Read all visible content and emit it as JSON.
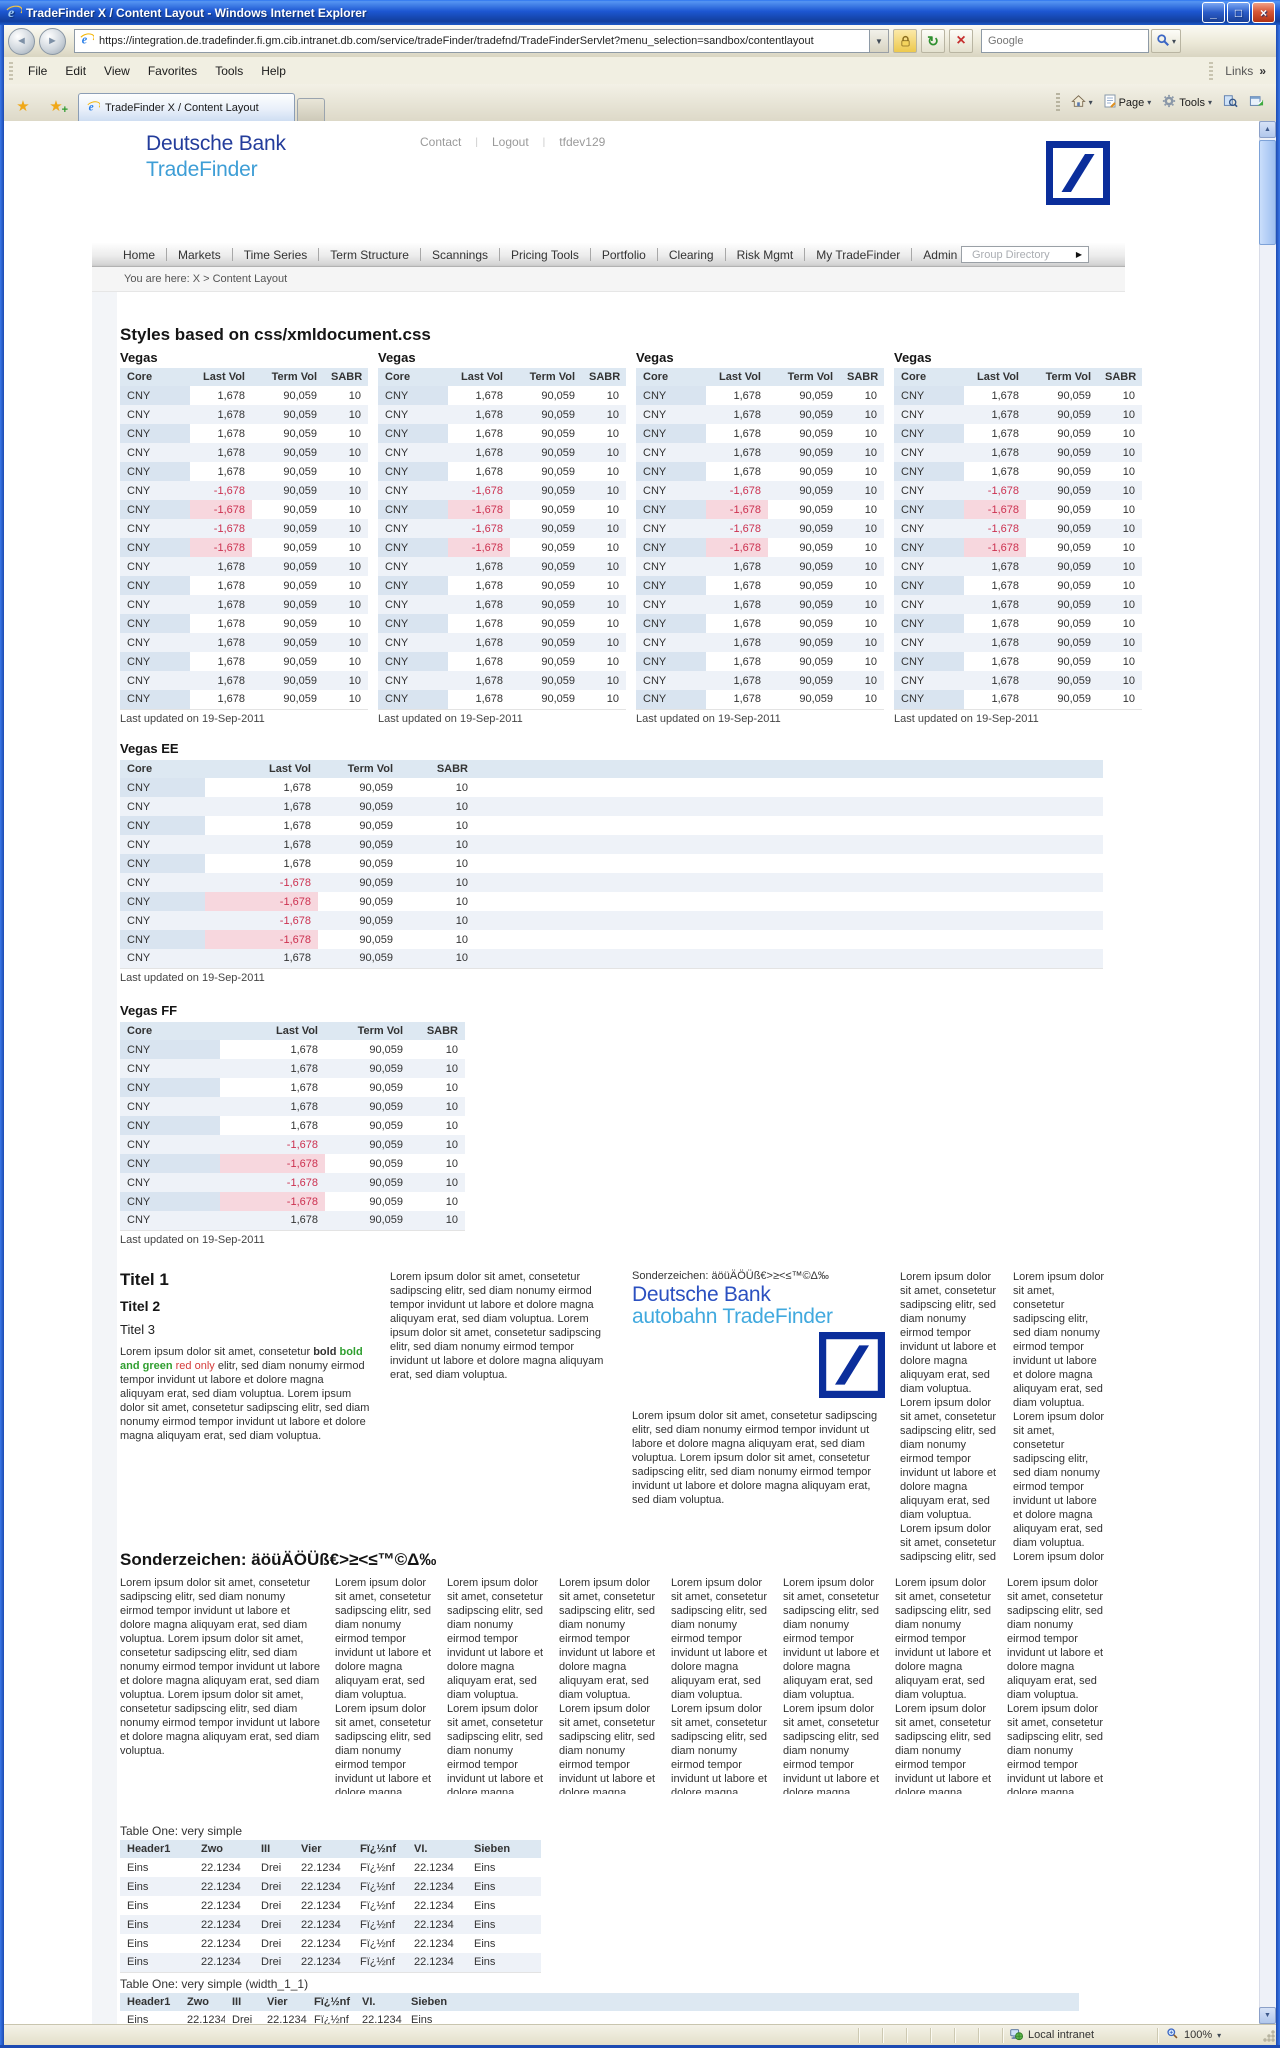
{
  "browser": {
    "window_title": "TradeFinder X / Content Layout - Windows Internet Explorer",
    "url": "https://integration.de.tradefinder.fi.gm.cib.intranet.db.com/service/tradeFinder/tradefnd/TradeFinderServlet?menu_selection=sandbox/contentlayout",
    "search_placeholder": "Google",
    "menu": [
      "File",
      "Edit",
      "View",
      "Favorites",
      "Tools",
      "Help"
    ],
    "links_label": "Links",
    "tab_title": "TradeFinder X / Content Layout",
    "page_button": "Page",
    "tools_button": "Tools",
    "status_zone": "Local intranet",
    "zoom_level": "100%"
  },
  "header": {
    "brand_line1": "Deutsche Bank",
    "brand_line2": "TradeFinder",
    "links": [
      "Contact",
      "Logout",
      "tfdev129"
    ]
  },
  "nav": {
    "items": [
      {
        "label": "Home"
      },
      {
        "label": "Markets"
      },
      {
        "label": "Time Series"
      },
      {
        "label": "Term Structure"
      },
      {
        "label": "Scannings"
      },
      {
        "label": "Pricing Tools"
      },
      {
        "label": "Portfolio"
      },
      {
        "label": "Clearing"
      },
      {
        "label": "Risk Mgmt"
      },
      {
        "label": "My TradeFinder"
      },
      {
        "label": "Admin"
      },
      {
        "label": "X",
        "accent": true
      }
    ],
    "group_directory": "Group Directory"
  },
  "breadcrumb": "You are here: X > Content Layout",
  "main": {
    "heading": "Styles based on css/xmldocument.css",
    "vegas_small": {
      "title": "Vegas",
      "columns": [
        "Core",
        "Last Vol",
        "Term Vol",
        "SABR"
      ],
      "rows": [
        [
          "CNY",
          "1,678",
          "90,059",
          "10"
        ],
        [
          "CNY",
          "1,678",
          "90,059",
          "10"
        ],
        [
          "CNY",
          "1,678",
          "90,059",
          "10"
        ],
        [
          "CNY",
          "1,678",
          "90,059",
          "10"
        ],
        [
          "CNY",
          "1,678",
          "90,059",
          "10"
        ],
        [
          "CNY",
          "-1,678",
          "90,059",
          "10"
        ],
        [
          "CNY",
          "-1,678",
          "90,059",
          "10"
        ],
        [
          "CNY",
          "-1,678",
          "90,059",
          "10"
        ],
        [
          "CNY",
          "-1,678",
          "90,059",
          "10"
        ],
        [
          "CNY",
          "1,678",
          "90,059",
          "10"
        ],
        [
          "CNY",
          "1,678",
          "90,059",
          "10"
        ],
        [
          "CNY",
          "1,678",
          "90,059",
          "10"
        ],
        [
          "CNY",
          "1,678",
          "90,059",
          "10"
        ],
        [
          "CNY",
          "1,678",
          "90,059",
          "10"
        ],
        [
          "CNY",
          "1,678",
          "90,059",
          "10"
        ],
        [
          "CNY",
          "1,678",
          "90,059",
          "10"
        ],
        [
          "CNY",
          "1,678",
          "90,059",
          "10"
        ]
      ],
      "footer": "Last updated on 19-Sep-2011"
    },
    "vegas_ee": {
      "title": "Vegas EE",
      "columns": [
        "Core",
        "Last Vol",
        "Term Vol",
        "SABR"
      ],
      "filler": true,
      "rows": [
        [
          "CNY",
          "1,678",
          "90,059",
          "10"
        ],
        [
          "CNY",
          "1,678",
          "90,059",
          "10"
        ],
        [
          "CNY",
          "1,678",
          "90,059",
          "10"
        ],
        [
          "CNY",
          "1,678",
          "90,059",
          "10"
        ],
        [
          "CNY",
          "1,678",
          "90,059",
          "10"
        ],
        [
          "CNY",
          "-1,678",
          "90,059",
          "10"
        ],
        [
          "CNY",
          "-1,678",
          "90,059",
          "10"
        ],
        [
          "CNY",
          "-1,678",
          "90,059",
          "10"
        ],
        [
          "CNY",
          "-1,678",
          "90,059",
          "10"
        ],
        [
          "CNY",
          "1,678",
          "90,059",
          "10"
        ]
      ],
      "footer": "Last updated on 19-Sep-2011"
    },
    "vegas_ff": {
      "title": "Vegas FF",
      "columns": [
        "Core",
        "Last Vol",
        "Term Vol",
        "SABR"
      ],
      "rows": [
        [
          "CNY",
          "1,678",
          "90,059",
          "10"
        ],
        [
          "CNY",
          "1,678",
          "90,059",
          "10"
        ],
        [
          "CNY",
          "1,678",
          "90,059",
          "10"
        ],
        [
          "CNY",
          "1,678",
          "90,059",
          "10"
        ],
        [
          "CNY",
          "1,678",
          "90,059",
          "10"
        ],
        [
          "CNY",
          "-1,678",
          "90,059",
          "10"
        ],
        [
          "CNY",
          "-1,678",
          "90,059",
          "10"
        ],
        [
          "CNY",
          "-1,678",
          "90,059",
          "10"
        ],
        [
          "CNY",
          "-1,678",
          "90,059",
          "10"
        ],
        [
          "CNY",
          "1,678",
          "90,059",
          "10"
        ]
      ],
      "footer": "Last updated on 19-Sep-2011"
    },
    "titel": {
      "h1": "Titel 1",
      "h2": "Titel 2",
      "h3": "Titel 3",
      "rich": [
        {
          "t": "Lorem ipsum dolor sit amet, consetetur ",
          "s": "n"
        },
        {
          "t": "bold",
          "s": "b"
        },
        {
          "t": " ",
          "s": "n"
        },
        {
          "t": "bold and green",
          "s": "bg"
        },
        {
          "t": " ",
          "s": "n"
        },
        {
          "t": "red only",
          "s": "r"
        },
        {
          "t": " elitr, sed diam nonumy eirmod tempor invidunt ut labore et dolore magna aliquyam erat, sed diam voluptua. Lorem ipsum dolor sit amet, consetetur sadipscing elitr, sed diam nonumy eirmod tempor invidunt ut labore et dolore magna aliquyam erat, sed diam voluptua.",
          "s": "n"
        }
      ]
    },
    "col3": {
      "special_line": "Sonderzeichen: äöüÄÖÜß€>≥<≤™©Δ‰",
      "brand1": "Deutsche Bank",
      "brand2": "autobahn TradeFinder"
    },
    "sonder_heading": "Sonderzeichen: äöüÄÖÜß€>≥<≤™©Δ‰",
    "table_one": {
      "label": "Table One: very simple",
      "columns": [
        "Header1",
        "Zwo",
        "III",
        "Vier",
        "Fï¿½nf",
        "VI.",
        "Sieben"
      ],
      "align": "left",
      "rows": [
        [
          "Eins",
          "22.1234",
          "Drei",
          "22.1234",
          "Fï¿½nf",
          "22.1234",
          "Eins"
        ],
        [
          "Eins",
          "22.1234",
          "Drei",
          "22.1234",
          "Fï¿½nf",
          "22.1234",
          "Eins"
        ],
        [
          "Eins",
          "22.1234",
          "Drei",
          "22.1234",
          "Fï¿½nf",
          "22.1234",
          "Eins"
        ],
        [
          "Eins",
          "22.1234",
          "Drei",
          "22.1234",
          "Fï¿½nf",
          "22.1234",
          "Eins"
        ],
        [
          "Eins",
          "22.1234",
          "Drei",
          "22.1234",
          "Fï¿½nf",
          "22.1234",
          "Eins"
        ],
        [
          "Eins",
          "22.1234",
          "Drei",
          "22.1234",
          "Fï¿½nf",
          "22.1234",
          "Eins"
        ]
      ]
    },
    "table_two": {
      "label": "Table One: very simple (width_1_1)",
      "columns": [
        "Header1",
        "Zwo",
        "III",
        "Vier",
        "Fï¿½nf",
        "VI.",
        "Sieben"
      ],
      "align": "left",
      "filler": true,
      "rows": [
        [
          "Eins",
          "22.1234",
          "Drei",
          "22.1234",
          "Fï¿½nf",
          "22.1234",
          "Eins"
        ]
      ]
    }
  },
  "texts": {
    "lorem_double": "Lorem ipsum dolor sit amet, consetetur sadipscing elitr, sed diam nonumy eirmod tempor invidunt ut labore et dolore magna aliquyam erat, sed diam voluptua. Lorem ipsum dolor sit amet, consetetur sadipscing elitr, sed diam nonumy eirmod tempor invidunt ut labore et dolore magna aliquyam erat, sed diam voluptua.",
    "lorem_triple": "Lorem ipsum dolor sit amet, consetetur sadipscing elitr, sed diam nonumy eirmod tempor invidunt ut labore et dolore magna aliquyam erat, sed diam voluptua. Lorem ipsum dolor sit amet, consetetur sadipscing elitr, sed diam nonumy eirmod tempor invidunt ut labore et dolore magna aliquyam erat, sed diam voluptua. Lorem ipsum dolor sit amet, consetetur sadipscing elitr, sed diam nonumy eirmod tempor invidunt ut labore et dolore magna aliquyam erat, sed diam voluptua."
  },
  "colors": {
    "db_blue": "#0b2e9b",
    "tradefinder_blue": "#3e9ed6",
    "autobahn_blue": "#41a9de",
    "negative_text": "#cc3150",
    "negative_bg": "#f7d7de",
    "table_header_bg": "#dde8f2",
    "green_text": "#2f9e2f",
    "red_text": "#d43a3a"
  }
}
